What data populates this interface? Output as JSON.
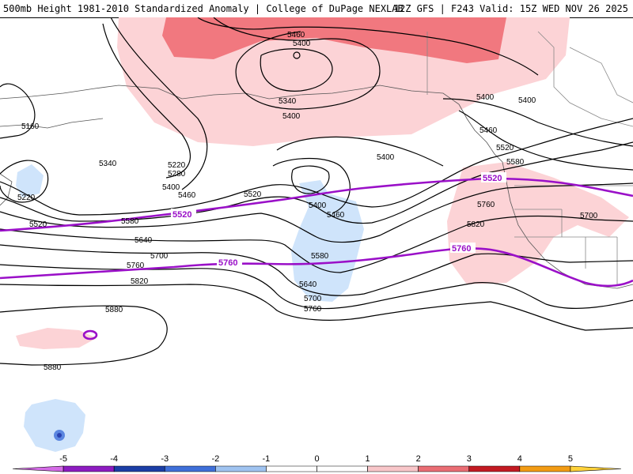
{
  "header": {
    "title_left": "500mb Height 1981-2010 Standardized Anomaly | College of DuPage NEXLAB",
    "title_right": "12Z GFS | F243 Valid: 15Z WED NOV 26 2025"
  },
  "colors": {
    "pos_light": "#fcd3d6",
    "pos_mid": "#f1787f",
    "neg_light": "#cfe4fb",
    "neg_mid": "#5b86e0",
    "neg_dark": "#2941b0",
    "purple": "#9a10c8",
    "contour": "#000000"
  },
  "contours": {
    "black_labels": [
      "5460",
      "5400",
      "5340",
      "5400",
      "5160",
      "5220",
      "5280",
      "5340",
      "5400",
      "5460",
      "5220",
      "5520",
      "5580",
      "5640",
      "5700",
      "5760",
      "5820",
      "5880",
      "5880",
      "5520",
      "5400",
      "5400",
      "5460",
      "5580",
      "5640",
      "5700",
      "5760",
      "5400",
      "5400",
      "5460",
      "5520",
      "5580",
      "5760",
      "5820",
      "5700"
    ],
    "purple_labels": [
      "5520",
      "5760",
      "5520",
      "5760"
    ]
  },
  "colorbar": {
    "ticks": [
      "-5",
      "-4",
      "-3",
      "-2",
      "-1",
      "0",
      "1",
      "2",
      "3",
      "4",
      "5"
    ],
    "segments": [
      "#d46be6",
      "#8d1bc1",
      "#1b3ea6",
      "#3f6fd9",
      "#9fc3f0",
      "#ffffff",
      "#ffffff",
      "#f8c6c9",
      "#ea6d74",
      "#c31a22",
      "#f29b14",
      "#ffd23a"
    ]
  }
}
